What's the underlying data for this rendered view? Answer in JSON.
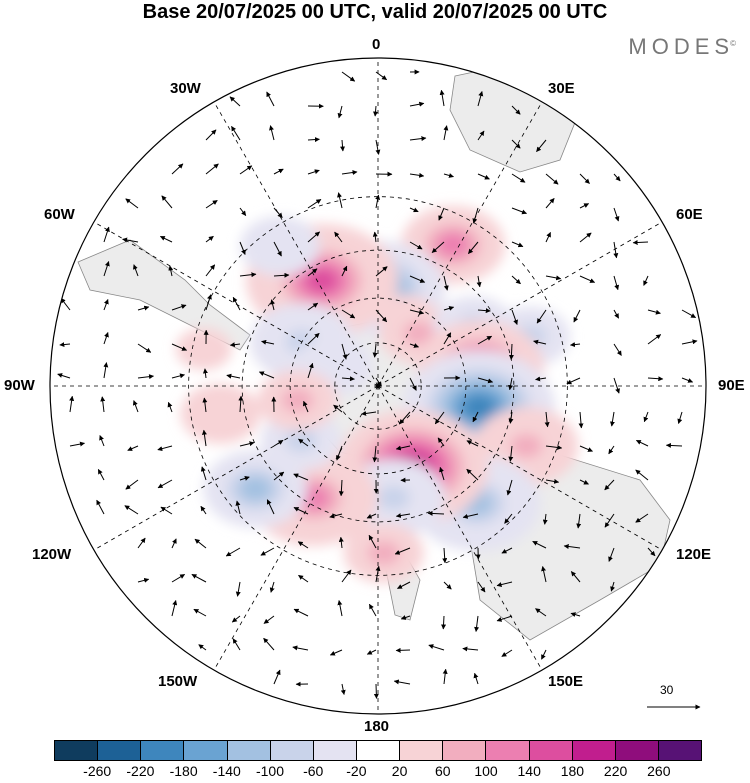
{
  "title": "Base 20/07/2025 00 UTC, valid 20/07/2025 00 UTC",
  "brand": "MODES",
  "brand_mark": "©",
  "map": {
    "projection": "south polar stereographic",
    "longitude_labels": {
      "lon_0": "0",
      "lon_30e": "30E",
      "lon_60e": "60E",
      "lon_90e": "90E",
      "lon_120e": "120E",
      "lon_150e": "150E",
      "lon_180": "180",
      "lon_150w": "150W",
      "lon_120w": "120W",
      "lon_90w": "90W",
      "lon_60w": "60W",
      "lon_30w": "30W"
    },
    "reference_vector": "30",
    "colors": {
      "land": "#ececec",
      "coast": "#888888",
      "grid": "#000000"
    }
  },
  "colorbar": {
    "ticks": [
      "-260",
      "-220",
      "-180",
      "-140",
      "-100",
      "-60",
      "-20",
      "20",
      "60",
      "100",
      "140",
      "180",
      "220",
      "260"
    ],
    "colors": [
      "#0f3c5e",
      "#1d6196",
      "#3e86bd",
      "#6aa3d2",
      "#a3c1e1",
      "#c9d3ea",
      "#e4e3f2",
      "#ffffff",
      "#f7d3d6",
      "#f2aebf",
      "#ec7fb1",
      "#dd4e9f",
      "#c11e8e",
      "#8f0d7c",
      "#571275"
    ]
  },
  "anomaly_cells": [
    {
      "lon": 28,
      "lat": -38,
      "value": 120
    },
    {
      "lon": 2,
      "lat": -57,
      "value": -150
    },
    {
      "lon": -28,
      "lat": -50,
      "value": 170
    },
    {
      "lon": -35,
      "lat": -35,
      "value": -60
    },
    {
      "lon": -60,
      "lat": -60,
      "value": -100
    },
    {
      "lon": -66,
      "lat": -73,
      "value": -60
    },
    {
      "lon": 22,
      "lat": -64,
      "value": 40
    },
    {
      "lon": 38,
      "lat": -67,
      "value": 80
    },
    {
      "lon": 58,
      "lat": -52,
      "value": -80
    },
    {
      "lon": 72,
      "lat": -38,
      "value": -70
    },
    {
      "lon": 80,
      "lat": -55,
      "value": 150
    },
    {
      "lon": 102,
      "lat": -55,
      "value": -200
    },
    {
      "lon": 112,
      "lat": -38,
      "value": 90
    },
    {
      "lon": 140,
      "lat": -40,
      "value": -130
    },
    {
      "lon": 157,
      "lat": -60,
      "value": 200
    },
    {
      "lon": 172,
      "lat": -52,
      "value": -100
    },
    {
      "lon": 178,
      "lat": -36,
      "value": 80
    },
    {
      "lon": -150,
      "lat": -47,
      "value": 130
    },
    {
      "lon": -130,
      "lat": -38,
      "value": -110
    },
    {
      "lon": -125,
      "lat": -58,
      "value": -70
    },
    {
      "lon": -100,
      "lat": -62,
      "value": 70
    },
    {
      "lon": -100,
      "lat": -38,
      "value": 50
    },
    {
      "lon": -78,
      "lat": -33,
      "value": 40
    }
  ]
}
